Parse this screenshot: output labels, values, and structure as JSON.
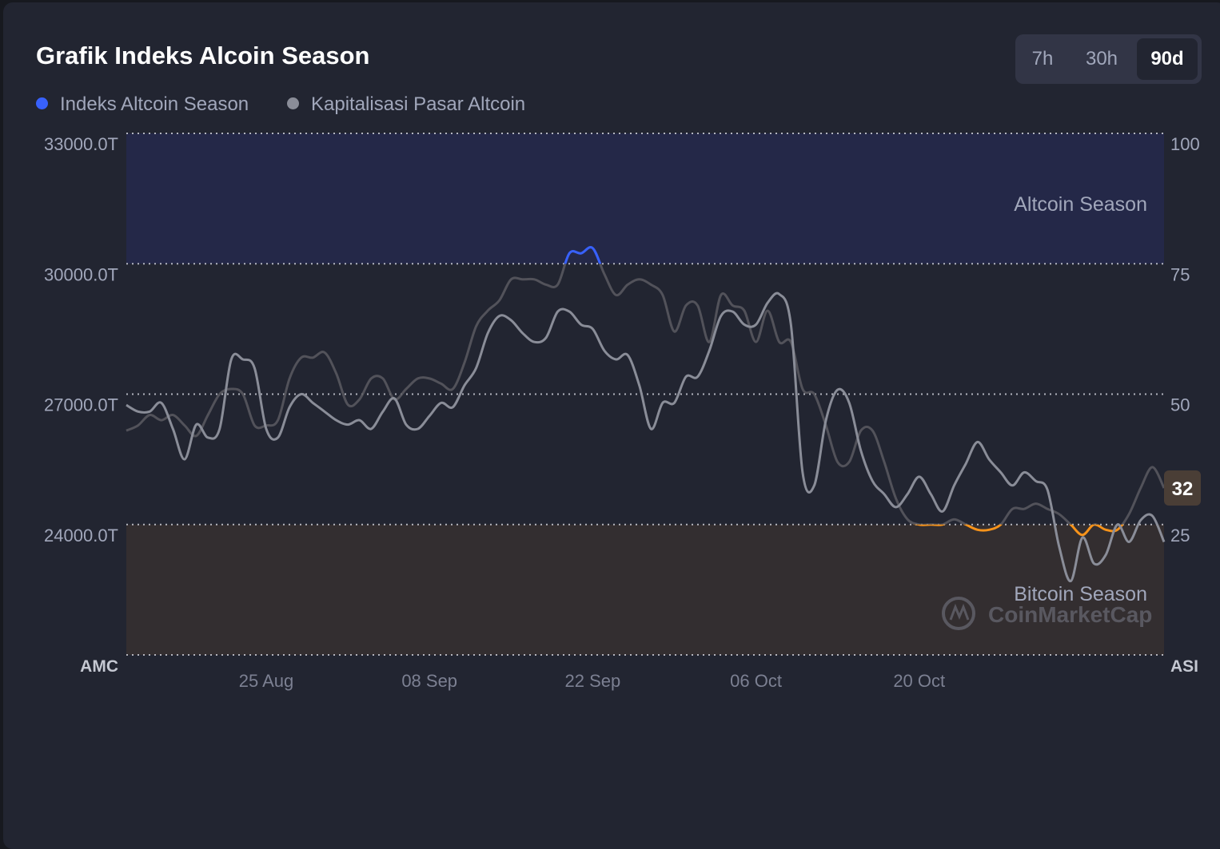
{
  "header": {
    "title": "Grafik Indeks Alcoin Season"
  },
  "tabs": [
    {
      "label": "7h",
      "active": false
    },
    {
      "label": "30h",
      "active": false
    },
    {
      "label": "90d",
      "active": true
    }
  ],
  "colors": {
    "index_line": "#3861fb",
    "index_mid": "#5a5a62",
    "index_low": "#f7931a",
    "marketcap_line": "#8a8d98",
    "altcoin_band": "#242848",
    "bitcoin_band": "#332e30",
    "current_badge": "#4a3e36"
  },
  "chart_data": {
    "type": "line",
    "legend": [
      "Indeks Altcoin Season",
      "Kapitalisasi Pasar Altcoin"
    ],
    "zones": {
      "altcoin": "Altcoin Season",
      "bitcoin": "Bitcoin Season"
    },
    "left_axis": {
      "ticks": [
        "33000.0T",
        "30000.0T",
        "27000.0T",
        "24000.0T",
        "AMC"
      ],
      "values": [
        33000,
        30000,
        27000,
        24000,
        21000
      ],
      "range": [
        21000,
        33000
      ]
    },
    "right_axis": {
      "ticks": [
        "100",
        "75",
        "50",
        "25",
        "ASI"
      ],
      "values": [
        100,
        75,
        50,
        25,
        0
      ],
      "range": [
        0,
        100
      ]
    },
    "x_axis": {
      "ticks": [
        "25 Aug",
        "08 Sep",
        "22 Sep",
        "06 Oct",
        "20 Oct"
      ],
      "tick_days": [
        12,
        26,
        40,
        54,
        68
      ],
      "days_total": 89
    },
    "current_value": "32",
    "series": [
      {
        "name": "Indeks Altcoin Season",
        "axis": "right",
        "points": [
          [
            0,
            43
          ],
          [
            1,
            44
          ],
          [
            2,
            46
          ],
          [
            3,
            45
          ],
          [
            4,
            46
          ],
          [
            5,
            44
          ],
          [
            6,
            42
          ],
          [
            7,
            46
          ],
          [
            8,
            50
          ],
          [
            9,
            51
          ],
          [
            10,
            50
          ],
          [
            11,
            44
          ],
          [
            12,
            44
          ],
          [
            13,
            45
          ],
          [
            14,
            53
          ],
          [
            15,
            57
          ],
          [
            16,
            57
          ],
          [
            17,
            58
          ],
          [
            18,
            54
          ],
          [
            19,
            48
          ],
          [
            20,
            49
          ],
          [
            21,
            53
          ],
          [
            22,
            53
          ],
          [
            23,
            49
          ],
          [
            24,
            51
          ],
          [
            25,
            53
          ],
          [
            26,
            53
          ],
          [
            27,
            52
          ],
          [
            28,
            51
          ],
          [
            29,
            56
          ],
          [
            30,
            63
          ],
          [
            31,
            66
          ],
          [
            32,
            68
          ],
          [
            33,
            72
          ],
          [
            34,
            72
          ],
          [
            35,
            72
          ],
          [
            36,
            71
          ],
          [
            37,
            71
          ],
          [
            38,
            77
          ],
          [
            39,
            77
          ],
          [
            40,
            78
          ],
          [
            41,
            73
          ],
          [
            42,
            69
          ],
          [
            43,
            71
          ],
          [
            44,
            72
          ],
          [
            45,
            71
          ],
          [
            46,
            69
          ],
          [
            47,
            62
          ],
          [
            48,
            67
          ],
          [
            49,
            67
          ],
          [
            50,
            60
          ],
          [
            51,
            69
          ],
          [
            52,
            67
          ],
          [
            53,
            66
          ],
          [
            54,
            60
          ],
          [
            55,
            66
          ],
          [
            56,
            60
          ],
          [
            57,
            60
          ],
          [
            58,
            51
          ],
          [
            59,
            50
          ],
          [
            60,
            44
          ],
          [
            61,
            37
          ],
          [
            62,
            37
          ],
          [
            63,
            43
          ],
          [
            64,
            43
          ],
          [
            65,
            37
          ],
          [
            66,
            30
          ],
          [
            67,
            26
          ],
          [
            68,
            25
          ],
          [
            69,
            25
          ],
          [
            70,
            25
          ],
          [
            71,
            26
          ],
          [
            72,
            25
          ],
          [
            73,
            24
          ],
          [
            74,
            24
          ],
          [
            75,
            25
          ],
          [
            76,
            28
          ],
          [
            77,
            28
          ],
          [
            78,
            29
          ],
          [
            79,
            28
          ],
          [
            80,
            27
          ],
          [
            81,
            25
          ],
          [
            82,
            23
          ],
          [
            83,
            25
          ],
          [
            84,
            24
          ],
          [
            85,
            24
          ],
          [
            86,
            27
          ],
          [
            87,
            32
          ],
          [
            88,
            36
          ],
          [
            89,
            32
          ]
        ]
      },
      {
        "name": "Kapitalisasi Pasar Altcoin",
        "axis": "left",
        "points": [
          [
            0,
            26750
          ],
          [
            1,
            26600
          ],
          [
            2,
            26600
          ],
          [
            3,
            26800
          ],
          [
            4,
            26200
          ],
          [
            5,
            25500
          ],
          [
            6,
            26300
          ],
          [
            7,
            26000
          ],
          [
            8,
            26200
          ],
          [
            9,
            27800
          ],
          [
            10,
            27800
          ],
          [
            11,
            27600
          ],
          [
            12,
            26200
          ],
          [
            13,
            26000
          ],
          [
            14,
            26700
          ],
          [
            15,
            27000
          ],
          [
            16,
            26800
          ],
          [
            17,
            26600
          ],
          [
            18,
            26400
          ],
          [
            19,
            26300
          ],
          [
            20,
            26400
          ],
          [
            21,
            26200
          ],
          [
            22,
            26600
          ],
          [
            23,
            26900
          ],
          [
            24,
            26300
          ],
          [
            25,
            26200
          ],
          [
            26,
            26500
          ],
          [
            27,
            26800
          ],
          [
            28,
            26700
          ],
          [
            29,
            27200
          ],
          [
            30,
            27600
          ],
          [
            31,
            28400
          ],
          [
            32,
            28800
          ],
          [
            33,
            28700
          ],
          [
            34,
            28400
          ],
          [
            35,
            28200
          ],
          [
            36,
            28300
          ],
          [
            37,
            28900
          ],
          [
            38,
            28900
          ],
          [
            39,
            28600
          ],
          [
            40,
            28500
          ],
          [
            41,
            28000
          ],
          [
            42,
            27800
          ],
          [
            43,
            27900
          ],
          [
            44,
            27200
          ],
          [
            45,
            26200
          ],
          [
            46,
            26800
          ],
          [
            47,
            26800
          ],
          [
            48,
            27400
          ],
          [
            49,
            27400
          ],
          [
            50,
            28000
          ],
          [
            51,
            28800
          ],
          [
            52,
            28900
          ],
          [
            53,
            28600
          ],
          [
            54,
            28600
          ],
          [
            55,
            29100
          ],
          [
            56,
            29300
          ],
          [
            57,
            28600
          ],
          [
            58,
            25200
          ],
          [
            59,
            24900
          ],
          [
            60,
            26400
          ],
          [
            61,
            27100
          ],
          [
            62,
            26800
          ],
          [
            63,
            25700
          ],
          [
            64,
            25000
          ],
          [
            65,
            24700
          ],
          [
            66,
            24400
          ],
          [
            67,
            24700
          ],
          [
            68,
            25100
          ],
          [
            69,
            24700
          ],
          [
            70,
            24300
          ],
          [
            71,
            24900
          ],
          [
            72,
            25400
          ],
          [
            73,
            25900
          ],
          [
            74,
            25500
          ],
          [
            75,
            25200
          ],
          [
            76,
            24900
          ],
          [
            77,
            25200
          ],
          [
            78,
            25000
          ],
          [
            79,
            24800
          ],
          [
            80,
            23500
          ],
          [
            81,
            22700
          ],
          [
            82,
            23700
          ],
          [
            83,
            23100
          ],
          [
            84,
            23300
          ],
          [
            85,
            24000
          ],
          [
            86,
            23600
          ],
          [
            87,
            24100
          ],
          [
            88,
            24200
          ],
          [
            89,
            23600
          ]
        ]
      }
    ]
  },
  "watermark": {
    "text": "CoinMarketCap"
  }
}
